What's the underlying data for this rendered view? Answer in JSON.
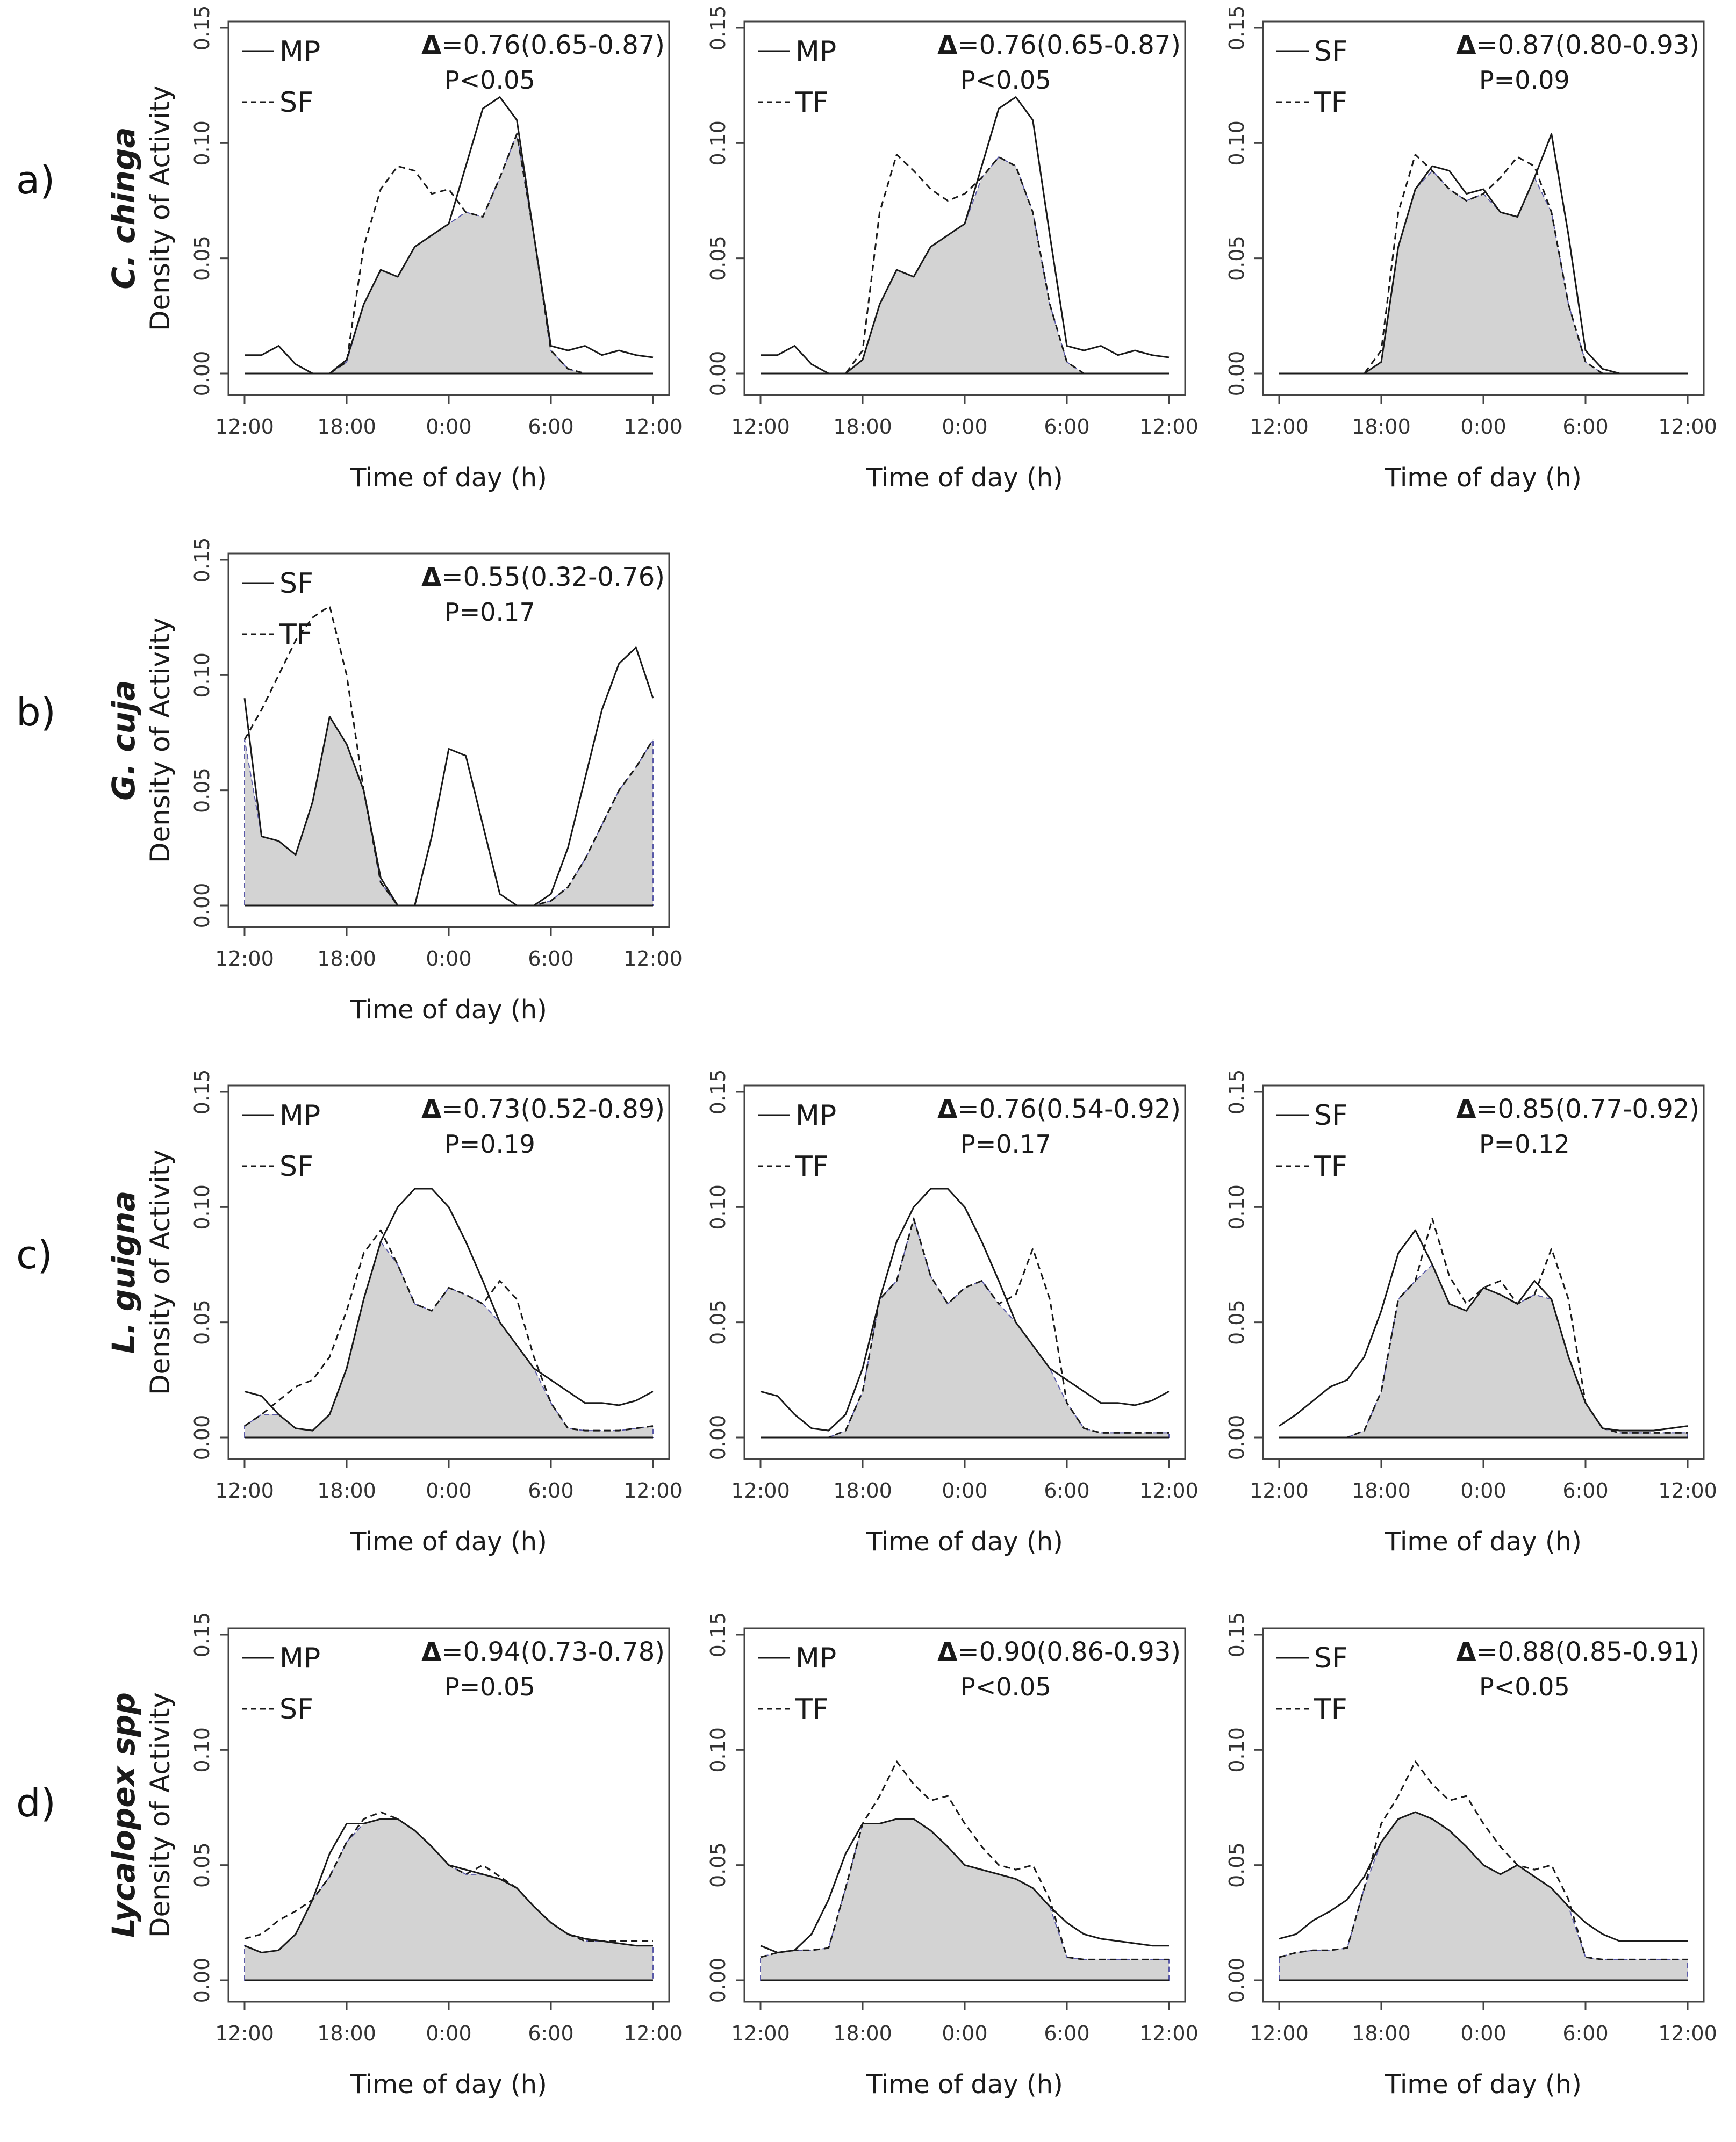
{
  "figure": {
    "x_axis_label": "Time of day (h)",
    "y_axis_label": "Density of Activity",
    "x_ticks": [
      "12:00",
      "18:00",
      "0:00",
      "6:00",
      "12:00"
    ],
    "y_ticks": [
      "0.00",
      "0.05",
      "0.10",
      "0.15"
    ],
    "delta_symbol": "Δ"
  },
  "chart_data": [
    {
      "row": "a)",
      "species": "C. chinga",
      "type": "line",
      "title": "",
      "xlabel": "Time of day (h)",
      "ylabel": "Density of Activity",
      "x": [
        0,
        1,
        2,
        3,
        4,
        5,
        6,
        7,
        8,
        9,
        10,
        11,
        12,
        13,
        14,
        15,
        16,
        17,
        18,
        19,
        20,
        21,
        22,
        23,
        24
      ],
      "xlim": [
        0,
        24
      ],
      "ylim": [
        0,
        0.15
      ],
      "legend": [
        "MP",
        "SF"
      ],
      "delta": "=0.76(0.65-0.87)",
      "p": "P<0.05",
      "series": [
        {
          "name": "MP",
          "style": "solid",
          "values": [
            0.008,
            0.008,
            0.012,
            0.004,
            0.0,
            0.0,
            0.006,
            0.03,
            0.045,
            0.042,
            0.055,
            0.06,
            0.065,
            0.09,
            0.115,
            0.12,
            0.11,
            0.06,
            0.012,
            0.01,
            0.012,
            0.008,
            0.01,
            0.008,
            0.007
          ]
        },
        {
          "name": "SF",
          "style": "dashed",
          "values": [
            0.0,
            0.0,
            0.0,
            0.0,
            0.0,
            0.0,
            0.005,
            0.055,
            0.08,
            0.09,
            0.088,
            0.078,
            0.08,
            0.07,
            0.068,
            0.085,
            0.104,
            0.06,
            0.01,
            0.002,
            0.0,
            0.0,
            0.0,
            0.0,
            0.0
          ]
        }
      ]
    },
    {
      "row": "a)",
      "species": "C. chinga",
      "type": "line",
      "title": "",
      "xlabel": "Time of day (h)",
      "ylabel": "",
      "x": [
        0,
        1,
        2,
        3,
        4,
        5,
        6,
        7,
        8,
        9,
        10,
        11,
        12,
        13,
        14,
        15,
        16,
        17,
        18,
        19,
        20,
        21,
        22,
        23,
        24
      ],
      "xlim": [
        0,
        24
      ],
      "ylim": [
        0,
        0.15
      ],
      "legend": [
        "MP",
        "TF"
      ],
      "delta": "=0.76(0.65-0.87)",
      "p": "P<0.05",
      "series": [
        {
          "name": "MP",
          "style": "solid",
          "values": [
            0.008,
            0.008,
            0.012,
            0.004,
            0.0,
            0.0,
            0.006,
            0.03,
            0.045,
            0.042,
            0.055,
            0.06,
            0.065,
            0.09,
            0.115,
            0.12,
            0.11,
            0.06,
            0.012,
            0.01,
            0.012,
            0.008,
            0.01,
            0.008,
            0.007
          ]
        },
        {
          "name": "TF",
          "style": "dashed",
          "values": [
            0.0,
            0.0,
            0.0,
            0.0,
            0.0,
            0.0,
            0.01,
            0.07,
            0.095,
            0.088,
            0.08,
            0.075,
            0.078,
            0.085,
            0.094,
            0.09,
            0.07,
            0.03,
            0.005,
            0.0,
            0.0,
            0.0,
            0.0,
            0.0,
            0.0
          ]
        }
      ]
    },
    {
      "row": "a)",
      "species": "C. chinga",
      "type": "line",
      "title": "",
      "xlabel": "Time of day (h)",
      "ylabel": "",
      "x": [
        0,
        1,
        2,
        3,
        4,
        5,
        6,
        7,
        8,
        9,
        10,
        11,
        12,
        13,
        14,
        15,
        16,
        17,
        18,
        19,
        20,
        21,
        22,
        23,
        24
      ],
      "xlim": [
        0,
        24
      ],
      "ylim": [
        0,
        0.15
      ],
      "legend": [
        "SF",
        "TF"
      ],
      "delta": "=0.87(0.80-0.93)",
      "p": "P=0.09",
      "series": [
        {
          "name": "SF",
          "style": "solid",
          "values": [
            0.0,
            0.0,
            0.0,
            0.0,
            0.0,
            0.0,
            0.005,
            0.055,
            0.08,
            0.09,
            0.088,
            0.078,
            0.08,
            0.07,
            0.068,
            0.085,
            0.104,
            0.06,
            0.01,
            0.002,
            0.0,
            0.0,
            0.0,
            0.0,
            0.0
          ]
        },
        {
          "name": "TF",
          "style": "dashed",
          "values": [
            0.0,
            0.0,
            0.0,
            0.0,
            0.0,
            0.0,
            0.01,
            0.07,
            0.095,
            0.088,
            0.08,
            0.075,
            0.078,
            0.085,
            0.094,
            0.09,
            0.07,
            0.03,
            0.005,
            0.0,
            0.0,
            0.0,
            0.0,
            0.0,
            0.0
          ]
        }
      ]
    },
    {
      "row": "b)",
      "species": "G. cuja",
      "type": "line",
      "title": "",
      "xlabel": "Time of day (h)",
      "ylabel": "Density of Activity",
      "x": [
        0,
        1,
        2,
        3,
        4,
        5,
        6,
        7,
        8,
        9,
        10,
        11,
        12,
        13,
        14,
        15,
        16,
        17,
        18,
        19,
        20,
        21,
        22,
        23,
        24
      ],
      "xlim": [
        0,
        24
      ],
      "ylim": [
        0,
        0.15
      ],
      "legend": [
        "SF",
        "TF"
      ],
      "delta": "=0.55(0.32-0.76)",
      "p": "P=0.17",
      "series": [
        {
          "name": "SF",
          "style": "solid",
          "values": [
            0.09,
            0.03,
            0.028,
            0.022,
            0.045,
            0.082,
            0.07,
            0.05,
            0.012,
            0.0,
            0.0,
            0.03,
            0.068,
            0.065,
            0.035,
            0.005,
            0.0,
            0.0,
            0.005,
            0.025,
            0.055,
            0.085,
            0.105,
            0.112,
            0.09
          ]
        },
        {
          "name": "TF",
          "style": "dashed",
          "values": [
            0.072,
            0.085,
            0.1,
            0.115,
            0.125,
            0.13,
            0.1,
            0.05,
            0.01,
            0.0,
            0.0,
            0.0,
            0.0,
            0.0,
            0.0,
            0.0,
            0.0,
            0.0,
            0.002,
            0.008,
            0.02,
            0.035,
            0.05,
            0.06,
            0.072
          ]
        }
      ]
    },
    {
      "row": "c)",
      "species": "L. guigna",
      "type": "line",
      "title": "",
      "xlabel": "Time of day (h)",
      "ylabel": "Density of Activity",
      "x": [
        0,
        1,
        2,
        3,
        4,
        5,
        6,
        7,
        8,
        9,
        10,
        11,
        12,
        13,
        14,
        15,
        16,
        17,
        18,
        19,
        20,
        21,
        22,
        23,
        24
      ],
      "xlim": [
        0,
        24
      ],
      "ylim": [
        0,
        0.15
      ],
      "legend": [
        "MP",
        "SF"
      ],
      "delta": "=0.73(0.52-0.89)",
      "p": "P=0.19",
      "series": [
        {
          "name": "MP",
          "style": "solid",
          "values": [
            0.02,
            0.018,
            0.01,
            0.004,
            0.003,
            0.01,
            0.03,
            0.06,
            0.085,
            0.1,
            0.108,
            0.108,
            0.1,
            0.085,
            0.068,
            0.05,
            0.04,
            0.03,
            0.025,
            0.02,
            0.015,
            0.015,
            0.014,
            0.016,
            0.02
          ]
        },
        {
          "name": "SF",
          "style": "dashed",
          "values": [
            0.005,
            0.01,
            0.016,
            0.022,
            0.025,
            0.035,
            0.055,
            0.08,
            0.09,
            0.075,
            0.058,
            0.055,
            0.065,
            0.062,
            0.058,
            0.068,
            0.06,
            0.035,
            0.015,
            0.004,
            0.003,
            0.003,
            0.003,
            0.004,
            0.005
          ]
        }
      ]
    },
    {
      "row": "c)",
      "species": "L. guigna",
      "type": "line",
      "title": "",
      "xlabel": "Time of day (h)",
      "ylabel": "",
      "x": [
        0,
        1,
        2,
        3,
        4,
        5,
        6,
        7,
        8,
        9,
        10,
        11,
        12,
        13,
        14,
        15,
        16,
        17,
        18,
        19,
        20,
        21,
        22,
        23,
        24
      ],
      "xlim": [
        0,
        24
      ],
      "ylim": [
        0,
        0.15
      ],
      "legend": [
        "MP",
        "TF"
      ],
      "delta": "=0.76(0.54-0.92)",
      "p": "P=0.17",
      "series": [
        {
          "name": "MP",
          "style": "solid",
          "values": [
            0.02,
            0.018,
            0.01,
            0.004,
            0.003,
            0.01,
            0.03,
            0.06,
            0.085,
            0.1,
            0.108,
            0.108,
            0.1,
            0.085,
            0.068,
            0.05,
            0.04,
            0.03,
            0.025,
            0.02,
            0.015,
            0.015,
            0.014,
            0.016,
            0.02
          ]
        },
        {
          "name": "TF",
          "style": "dashed",
          "values": [
            0.0,
            0.0,
            0.0,
            0.0,
            0.0,
            0.003,
            0.02,
            0.06,
            0.068,
            0.095,
            0.07,
            0.058,
            0.065,
            0.068,
            0.058,
            0.062,
            0.082,
            0.06,
            0.015,
            0.004,
            0.002,
            0.002,
            0.002,
            0.002,
            0.002
          ]
        }
      ]
    },
    {
      "row": "c)",
      "species": "L. guigna",
      "type": "line",
      "title": "",
      "xlabel": "Time of day (h)",
      "ylabel": "",
      "x": [
        0,
        1,
        2,
        3,
        4,
        5,
        6,
        7,
        8,
        9,
        10,
        11,
        12,
        13,
        14,
        15,
        16,
        17,
        18,
        19,
        20,
        21,
        22,
        23,
        24
      ],
      "xlim": [
        0,
        24
      ],
      "ylim": [
        0,
        0.15
      ],
      "legend": [
        "SF",
        "TF"
      ],
      "delta": "=0.85(0.77-0.92)",
      "p": "P=0.12",
      "series": [
        {
          "name": "SF",
          "style": "solid",
          "values": [
            0.005,
            0.01,
            0.016,
            0.022,
            0.025,
            0.035,
            0.055,
            0.08,
            0.09,
            0.075,
            0.058,
            0.055,
            0.065,
            0.062,
            0.058,
            0.068,
            0.06,
            0.035,
            0.015,
            0.004,
            0.003,
            0.003,
            0.003,
            0.004,
            0.005
          ]
        },
        {
          "name": "TF",
          "style": "dashed",
          "values": [
            0.0,
            0.0,
            0.0,
            0.0,
            0.0,
            0.003,
            0.02,
            0.06,
            0.068,
            0.095,
            0.07,
            0.058,
            0.065,
            0.068,
            0.058,
            0.062,
            0.082,
            0.06,
            0.015,
            0.004,
            0.002,
            0.002,
            0.002,
            0.002,
            0.002
          ]
        }
      ]
    },
    {
      "row": "d)",
      "species": "Lycalopex spp",
      "type": "line",
      "title": "",
      "xlabel": "Time of day (h)",
      "ylabel": "Density of Activity",
      "x": [
        0,
        1,
        2,
        3,
        4,
        5,
        6,
        7,
        8,
        9,
        10,
        11,
        12,
        13,
        14,
        15,
        16,
        17,
        18,
        19,
        20,
        21,
        22,
        23,
        24
      ],
      "xlim": [
        0,
        24
      ],
      "ylim": [
        0,
        0.15
      ],
      "legend": [
        "MP",
        "SF"
      ],
      "delta": "=0.94(0.73-0.78)",
      "p": "P=0.05",
      "series": [
        {
          "name": "MP",
          "style": "solid",
          "values": [
            0.015,
            0.012,
            0.013,
            0.02,
            0.035,
            0.055,
            0.068,
            0.068,
            0.07,
            0.07,
            0.065,
            0.058,
            0.05,
            0.048,
            0.046,
            0.044,
            0.04,
            0.032,
            0.025,
            0.02,
            0.018,
            0.017,
            0.016,
            0.015,
            0.015
          ]
        },
        {
          "name": "SF",
          "style": "dashed",
          "values": [
            0.018,
            0.02,
            0.026,
            0.03,
            0.035,
            0.045,
            0.06,
            0.07,
            0.073,
            0.07,
            0.065,
            0.058,
            0.05,
            0.046,
            0.05,
            0.045,
            0.04,
            0.032,
            0.025,
            0.02,
            0.017,
            0.017,
            0.017,
            0.017,
            0.017
          ]
        }
      ]
    },
    {
      "row": "d)",
      "species": "Lycalopex spp",
      "type": "line",
      "title": "",
      "xlabel": "Time of day (h)",
      "ylabel": "",
      "x": [
        0,
        1,
        2,
        3,
        4,
        5,
        6,
        7,
        8,
        9,
        10,
        11,
        12,
        13,
        14,
        15,
        16,
        17,
        18,
        19,
        20,
        21,
        22,
        23,
        24
      ],
      "xlim": [
        0,
        24
      ],
      "ylim": [
        0,
        0.15
      ],
      "legend": [
        "MP",
        "TF"
      ],
      "delta": "=0.90(0.86-0.93)",
      "p": "P<0.05",
      "series": [
        {
          "name": "MP",
          "style": "solid",
          "values": [
            0.015,
            0.012,
            0.013,
            0.02,
            0.035,
            0.055,
            0.068,
            0.068,
            0.07,
            0.07,
            0.065,
            0.058,
            0.05,
            0.048,
            0.046,
            0.044,
            0.04,
            0.032,
            0.025,
            0.02,
            0.018,
            0.017,
            0.016,
            0.015,
            0.015
          ]
        },
        {
          "name": "TF",
          "style": "dashed",
          "values": [
            0.01,
            0.012,
            0.013,
            0.013,
            0.014,
            0.04,
            0.068,
            0.08,
            0.095,
            0.085,
            0.078,
            0.08,
            0.068,
            0.058,
            0.05,
            0.048,
            0.05,
            0.035,
            0.01,
            0.009,
            0.009,
            0.009,
            0.009,
            0.009,
            0.009
          ]
        }
      ]
    },
    {
      "row": "d)",
      "species": "Lycalopex spp",
      "type": "line",
      "title": "",
      "xlabel": "Time of day (h)",
      "ylabel": "",
      "x": [
        0,
        1,
        2,
        3,
        4,
        5,
        6,
        7,
        8,
        9,
        10,
        11,
        12,
        13,
        14,
        15,
        16,
        17,
        18,
        19,
        20,
        21,
        22,
        23,
        24
      ],
      "xlim": [
        0,
        24
      ],
      "ylim": [
        0,
        0.15
      ],
      "legend": [
        "SF",
        "TF"
      ],
      "delta": "=0.88(0.85-0.91)",
      "p": "P<0.05",
      "series": [
        {
          "name": "SF",
          "style": "solid",
          "values": [
            0.018,
            0.02,
            0.026,
            0.03,
            0.035,
            0.045,
            0.06,
            0.07,
            0.073,
            0.07,
            0.065,
            0.058,
            0.05,
            0.046,
            0.05,
            0.045,
            0.04,
            0.032,
            0.025,
            0.02,
            0.017,
            0.017,
            0.017,
            0.017,
            0.017
          ]
        },
        {
          "name": "TF",
          "style": "dashed",
          "values": [
            0.01,
            0.012,
            0.013,
            0.013,
            0.014,
            0.04,
            0.068,
            0.08,
            0.095,
            0.085,
            0.078,
            0.08,
            0.068,
            0.058,
            0.05,
            0.048,
            0.05,
            0.035,
            0.01,
            0.009,
            0.009,
            0.009,
            0.009,
            0.009,
            0.009
          ]
        }
      ]
    }
  ],
  "colors": {
    "overlap_fill": "#d3d3d3",
    "overlap_edge": "#5a5aa8",
    "line": "#1a1a1a",
    "axis": "#444444"
  }
}
